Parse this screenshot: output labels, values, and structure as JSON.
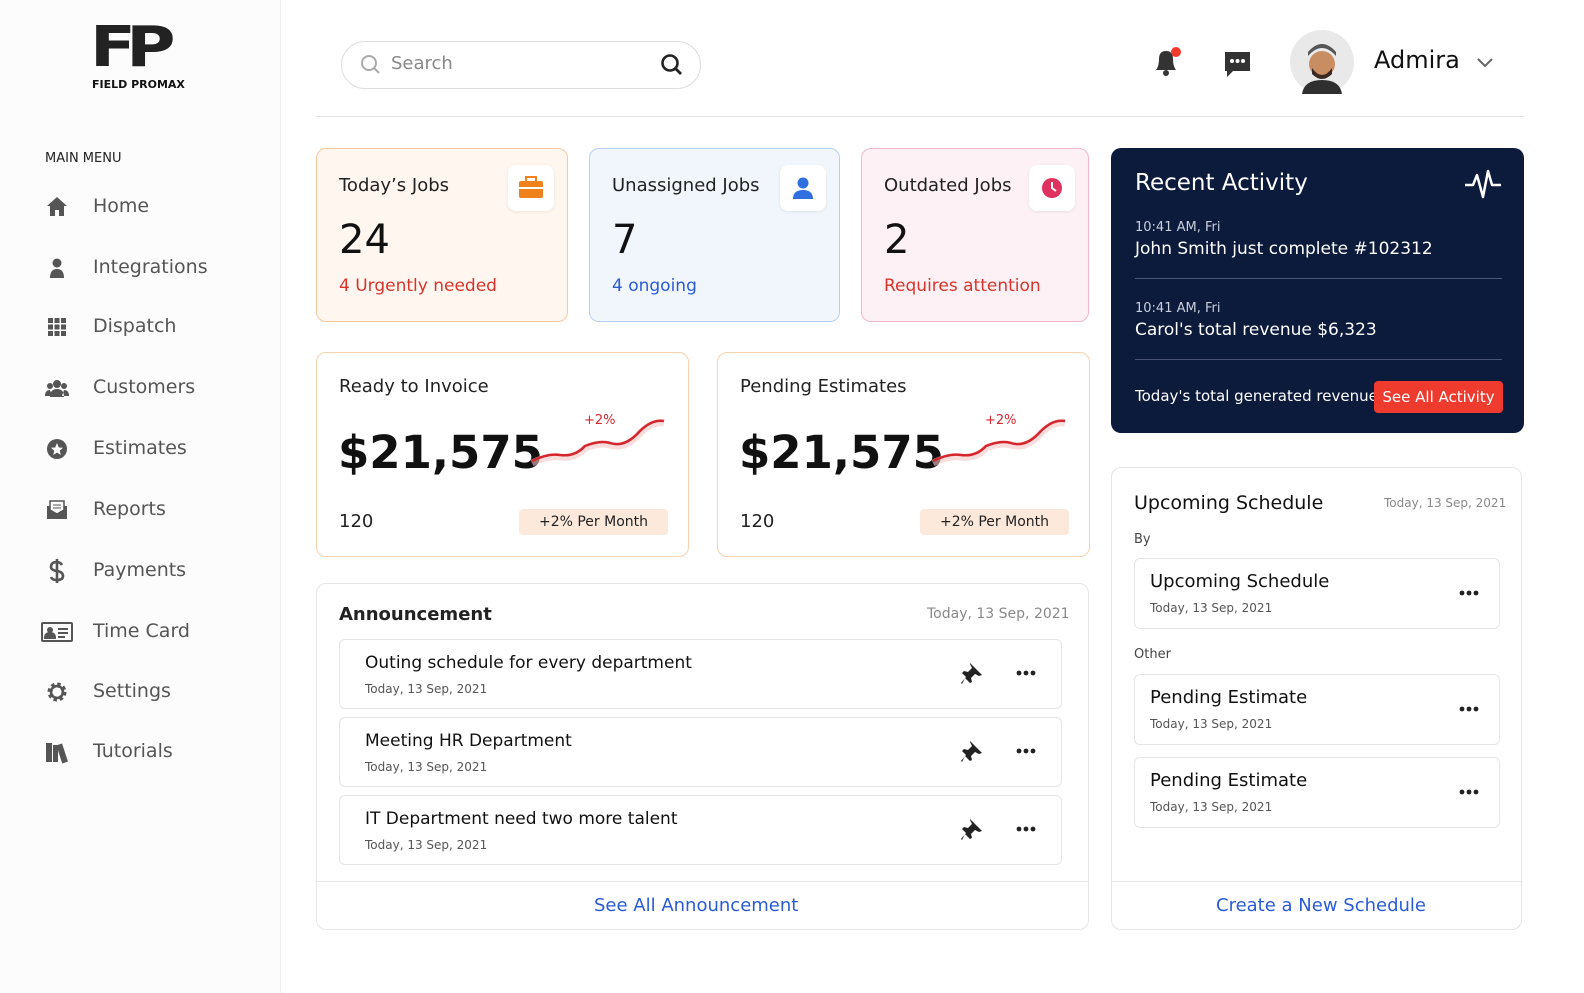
{
  "brand": {
    "mark": "FP",
    "name": "FIELD PROMAX"
  },
  "search": {
    "placeholder": "Search"
  },
  "user": {
    "name": "Admira"
  },
  "menu": {
    "title": "MAIN MENU",
    "items": [
      "Home",
      "Integrations",
      "Dispatch",
      "Customers",
      "Estimates",
      "Reports",
      "Payments",
      "Time Card",
      "Settings",
      "Tutorials"
    ]
  },
  "stats": [
    {
      "title": "Today’s Jobs",
      "value": 24,
      "note": "4 Urgently needed"
    },
    {
      "title": "Unassigned Jobs",
      "value": 7,
      "note": "4 ongoing"
    },
    {
      "title": "Outdated Jobs",
      "value": 2,
      "note": "Requires attention"
    }
  ],
  "revenue_cards": [
    {
      "title": "Ready to Invoice",
      "amount": "$21,575",
      "trend": "+2%",
      "count": 120,
      "rate": "+2% Per Month"
    },
    {
      "title": "Pending Estimates",
      "amount": "$21,575",
      "trend": "+2%",
      "count": 120,
      "rate": "+2% Per Month"
    }
  ],
  "recent_activity": {
    "title": "Recent Activity",
    "items": [
      {
        "time": "10:41 AM, Fri",
        "text": "John Smith just complete #102312"
      },
      {
        "time": "10:41 AM, Fri",
        "text": "Carol's total revenue $6,323"
      }
    ],
    "footer": "Today's total generated revenue",
    "button": "See All Activity"
  },
  "announcements": {
    "title": "Announcement",
    "date": "Today, 13 Sep, 2021",
    "items": [
      {
        "title": "Outing schedule for every department",
        "date": "Today, 13 Sep, 2021"
      },
      {
        "title": "Meeting HR Department",
        "date": "Today, 13 Sep, 2021"
      },
      {
        "title": "IT Department need two more talent",
        "date": "Today, 13 Sep, 2021"
      }
    ],
    "link": "See All Announcement"
  },
  "schedule": {
    "title": "Upcoming Schedule",
    "date": "Today, 13 Sep, 2021",
    "groups": [
      {
        "label": "By",
        "items": [
          {
            "title": "Upcoming Schedule",
            "date": "Today, 13 Sep, 2021"
          }
        ]
      },
      {
        "label": "Other",
        "items": [
          {
            "title": "Pending Estimate",
            "date": "Today, 13 Sep, 2021"
          },
          {
            "title": "Pending Estimate",
            "date": "Today, 13 Sep, 2021"
          }
        ]
      }
    ],
    "link": "Create a New Schedule"
  }
}
